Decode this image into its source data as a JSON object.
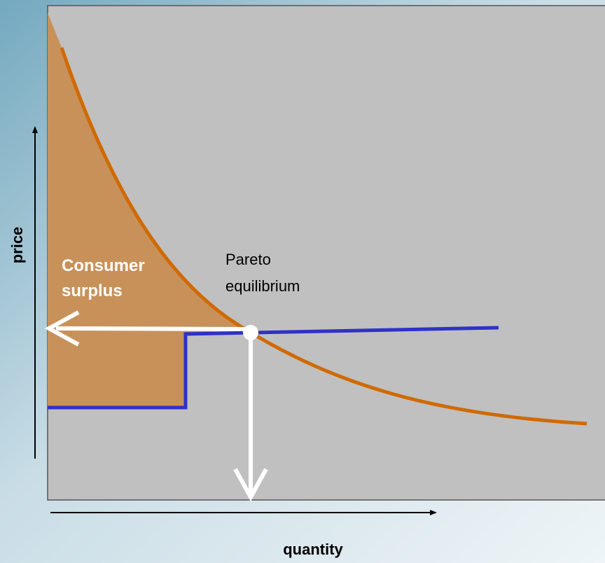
{
  "axes": {
    "y_label": "price",
    "x_label": "quantity"
  },
  "labels": {
    "consumer_surplus": [
      "Consumer",
      "surplus"
    ],
    "equilibrium": [
      "Pareto",
      "equilibrium"
    ]
  }
}
